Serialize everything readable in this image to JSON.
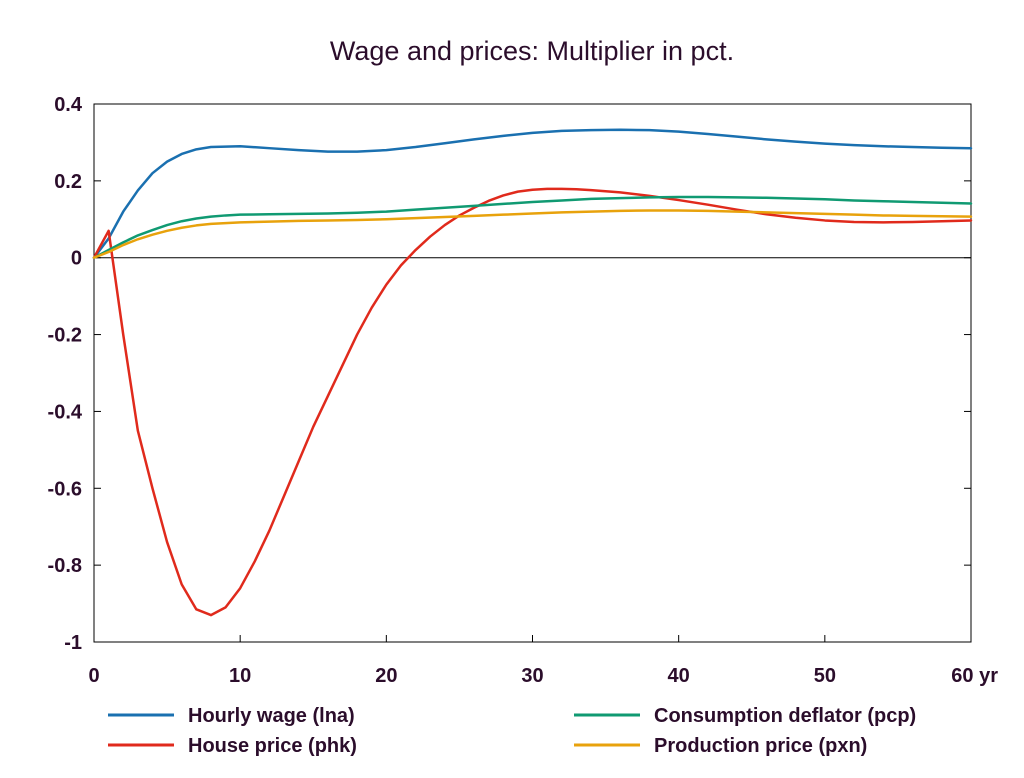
{
  "chart_data": {
    "type": "line",
    "title": "Wage and prices: Multiplier in pct.",
    "xlabel": "",
    "ylabel": "",
    "x_unit_label": "yr",
    "xlim": [
      0,
      60
    ],
    "ylim": [
      -1,
      0.4
    ],
    "xticks": [
      0,
      10,
      20,
      30,
      40,
      50,
      60
    ],
    "xtick_labels": [
      "0",
      "10",
      "20",
      "30",
      "40",
      "50",
      "60 yr"
    ],
    "yticks": [
      -1,
      -0.8,
      -0.6,
      -0.4,
      -0.2,
      0,
      0.2,
      0.4
    ],
    "ytick_labels": [
      "-1",
      "-0.8",
      "-0.6",
      "-0.4",
      "-0.2",
      "0",
      "0.2",
      "0.4"
    ],
    "grid": false,
    "zero_line": true,
    "legend_position": "bottom",
    "series": [
      {
        "name": "Hourly wage (lna)",
        "color": "#1a70b0",
        "x": [
          0,
          1,
          2,
          3,
          4,
          5,
          6,
          7,
          8,
          10,
          12,
          14,
          16,
          18,
          20,
          22,
          24,
          26,
          28,
          30,
          32,
          34,
          36,
          38,
          40,
          42,
          44,
          46,
          48,
          50,
          52,
          54,
          56,
          58,
          60
        ],
        "y": [
          0,
          0.05,
          0.12,
          0.175,
          0.22,
          0.25,
          0.27,
          0.282,
          0.288,
          0.29,
          0.285,
          0.28,
          0.276,
          0.276,
          0.28,
          0.288,
          0.298,
          0.308,
          0.317,
          0.325,
          0.33,
          0.332,
          0.333,
          0.332,
          0.328,
          0.322,
          0.315,
          0.308,
          0.302,
          0.297,
          0.293,
          0.29,
          0.288,
          0.286,
          0.285
        ]
      },
      {
        "name": "House price (phk)",
        "color": "#e02a1c",
        "x": [
          0,
          1,
          2,
          3,
          4,
          5,
          6,
          7,
          8,
          9,
          10,
          11,
          12,
          13,
          14,
          15,
          16,
          17,
          18,
          19,
          20,
          21,
          22,
          23,
          24,
          25,
          26,
          27,
          28,
          29,
          30,
          31,
          32,
          33,
          34,
          36,
          38,
          40,
          42,
          44,
          46,
          48,
          50,
          52,
          54,
          56,
          58,
          60
        ],
        "y": [
          0,
          0.07,
          -0.2,
          -0.45,
          -0.6,
          -0.74,
          -0.85,
          -0.915,
          -0.93,
          -0.91,
          -0.86,
          -0.79,
          -0.71,
          -0.62,
          -0.53,
          -0.44,
          -0.36,
          -0.28,
          -0.2,
          -0.13,
          -0.07,
          -0.02,
          0.02,
          0.055,
          0.085,
          0.11,
          0.13,
          0.148,
          0.162,
          0.172,
          0.177,
          0.179,
          0.179,
          0.178,
          0.176,
          0.17,
          0.161,
          0.15,
          0.138,
          0.125,
          0.113,
          0.104,
          0.097,
          0.093,
          0.092,
          0.093,
          0.095,
          0.097
        ]
      },
      {
        "name": "Consumption deflator (pcp)",
        "color": "#109a72",
        "x": [
          0,
          1,
          2,
          3,
          4,
          5,
          6,
          7,
          8,
          9,
          10,
          12,
          14,
          16,
          18,
          20,
          22,
          24,
          26,
          28,
          30,
          32,
          34,
          36,
          38,
          40,
          42,
          44,
          46,
          48,
          50,
          52,
          54,
          56,
          58,
          60
        ],
        "y": [
          0,
          0.02,
          0.04,
          0.058,
          0.072,
          0.085,
          0.095,
          0.102,
          0.107,
          0.11,
          0.112,
          0.113,
          0.114,
          0.115,
          0.117,
          0.12,
          0.125,
          0.13,
          0.135,
          0.14,
          0.145,
          0.149,
          0.153,
          0.155,
          0.157,
          0.158,
          0.158,
          0.157,
          0.156,
          0.154,
          0.152,
          0.149,
          0.147,
          0.145,
          0.143,
          0.141
        ]
      },
      {
        "name": "Production price (pxn)",
        "color": "#e8a20c",
        "x": [
          0,
          1,
          2,
          3,
          4,
          5,
          6,
          7,
          8,
          9,
          10,
          12,
          14,
          16,
          18,
          20,
          22,
          24,
          26,
          28,
          30,
          32,
          34,
          36,
          38,
          40,
          42,
          44,
          46,
          48,
          50,
          52,
          54,
          56,
          58,
          60
        ],
        "y": [
          0,
          0.015,
          0.033,
          0.048,
          0.06,
          0.07,
          0.078,
          0.084,
          0.088,
          0.09,
          0.092,
          0.094,
          0.096,
          0.097,
          0.098,
          0.1,
          0.103,
          0.106,
          0.109,
          0.112,
          0.115,
          0.118,
          0.12,
          0.122,
          0.123,
          0.123,
          0.122,
          0.12,
          0.118,
          0.116,
          0.114,
          0.112,
          0.11,
          0.109,
          0.108,
          0.107
        ]
      }
    ]
  }
}
